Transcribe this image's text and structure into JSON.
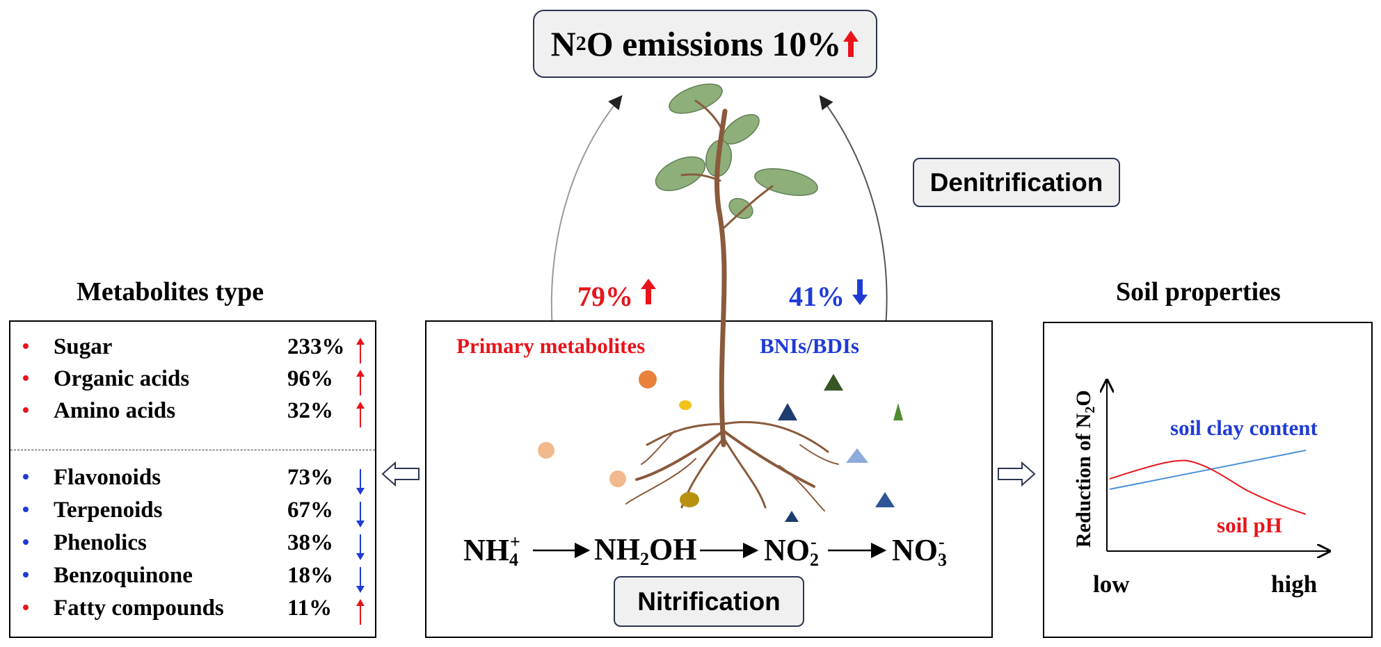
{
  "title": {
    "prefix": "N",
    "sub": "2",
    "suffix": "O emissions 10%"
  },
  "denitrification_label": "Denitrification",
  "nitrification_label": "Nitrification",
  "primary": {
    "percent": "79%",
    "label": "Primary metabolites",
    "color": "#e8141b"
  },
  "bni": {
    "percent": "41%",
    "label": "BNIs/BDIs",
    "color": "#1f3bd6"
  },
  "metabolites": {
    "heading": "Metabolites type",
    "items": [
      {
        "name": "Sugar",
        "percent": "233%",
        "trend": "up"
      },
      {
        "name": "Organic acids",
        "percent": "96%",
        "trend": "up"
      },
      {
        "name": "Amino acids",
        "percent": "32%",
        "trend": "up"
      },
      {
        "name": "Flavonoids",
        "percent": "73%",
        "trend": "down"
      },
      {
        "name": "Terpenoids",
        "percent": "67%",
        "trend": "down"
      },
      {
        "name": "Phenolics",
        "percent": "38%",
        "trend": "down"
      },
      {
        "name": "Benzoquinone",
        "percent": "18%",
        "trend": "down"
      },
      {
        "name": "Fatty compounds",
        "percent": "11%",
        "trend": "up"
      }
    ]
  },
  "soil": {
    "heading": "Soil properties",
    "y_axis": {
      "prefix": "Reduction of N",
      "sub": "2",
      "suffix": "O"
    },
    "x_low": "low",
    "x_high": "high",
    "clay_label": "soil clay content",
    "ph_label": "soil pH"
  },
  "chain": {
    "s1": {
      "base": "NH",
      "sub": "4",
      "sup": "+"
    },
    "s2": {
      "a": "NH",
      "sub": "2",
      "b": "OH"
    },
    "s3": {
      "base": "NO",
      "sub": "2",
      "sup": "-"
    },
    "s4": {
      "base": "NO",
      "sub": "3",
      "sup": "-"
    }
  },
  "colors": {
    "up": "#e8141b",
    "down": "#1f3bd6",
    "clay_line": "#4a90d9",
    "ph_line": "#e8141b",
    "box_border": "#2b3550"
  }
}
